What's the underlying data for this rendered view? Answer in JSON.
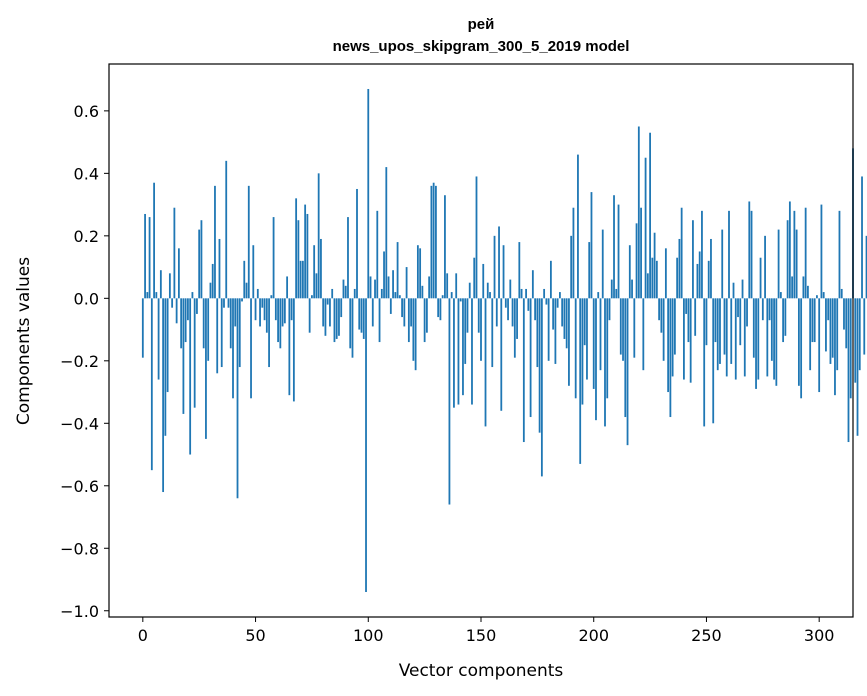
{
  "chart_data": {
    "type": "bar",
    "title": "рей",
    "subtitle": "news_upos_skipgram_300_5_2019 model",
    "xlabel": "Vector components",
    "ylabel": "Components values",
    "xlim": [
      -15,
      315
    ],
    "ylim": [
      -1.02,
      0.75
    ],
    "xticks": [
      0,
      50,
      100,
      150,
      200,
      250,
      300
    ],
    "yticks": [
      -1.0,
      -0.8,
      -0.6,
      -0.4,
      -0.2,
      0.0,
      0.2,
      0.4,
      0.6
    ],
    "ytick_labels": [
      "−1.0",
      "−0.8",
      "−0.6",
      "−0.4",
      "−0.2",
      "0.0",
      "0.2",
      "0.4",
      "0.6"
    ],
    "grid": false,
    "color": "#1f77b4",
    "values": [
      -0.19,
      0.27,
      0.02,
      0.26,
      -0.55,
      0.37,
      0.02,
      -0.26,
      0.09,
      -0.62,
      -0.44,
      -0.3,
      0.08,
      -0.03,
      0.29,
      -0.08,
      0.16,
      -0.16,
      -0.37,
      -0.14,
      -0.07,
      -0.5,
      0.02,
      -0.35,
      -0.05,
      0.22,
      0.25,
      -0.16,
      -0.45,
      -0.2,
      0.05,
      0.11,
      0.36,
      -0.24,
      0.19,
      -0.22,
      -0.03,
      0.44,
      -0.03,
      -0.16,
      -0.32,
      -0.09,
      -0.64,
      -0.22,
      -0.01,
      0.12,
      0.05,
      0.36,
      -0.32,
      0.17,
      -0.07,
      0.03,
      -0.09,
      -0.03,
      -0.07,
      -0.11,
      -0.22,
      0.01,
      0.26,
      -0.07,
      -0.14,
      -0.16,
      -0.09,
      -0.08,
      0.07,
      -0.31,
      -0.07,
      -0.33,
      0.32,
      0.25,
      0.12,
      0.12,
      0.3,
      0.27,
      -0.11,
      0.01,
      0.17,
      0.08,
      0.4,
      0.19,
      -0.09,
      -0.12,
      -0.02,
      -0.09,
      0.03,
      -0.14,
      -0.13,
      -0.12,
      -0.06,
      0.06,
      0.04,
      0.26,
      -0.16,
      -0.19,
      0.03,
      0.35,
      -0.1,
      -0.11,
      -0.13,
      -0.94,
      0.67,
      0.07,
      -0.09,
      0.06,
      0.28,
      -0.14,
      0.03,
      0.15,
      0.42,
      0.07,
      -0.05,
      0.09,
      0.02,
      0.18,
      0.01,
      -0.06,
      -0.09,
      0.1,
      -0.14,
      -0.09,
      -0.2,
      -0.23,
      0.17,
      0.16,
      0.04,
      -0.14,
      -0.11,
      0.07,
      0.36,
      0.37,
      0.36,
      -0.06,
      -0.07,
      0.01,
      0.33,
      0.08,
      -0.66,
      0.02,
      -0.35,
      0.08,
      -0.34,
      -0.01,
      -0.31,
      -0.21,
      -0.11,
      0.05,
      -0.34,
      0.13,
      0.39,
      -0.11,
      -0.2,
      0.11,
      -0.41,
      0.05,
      0.02,
      -0.22,
      0.2,
      -0.09,
      0.23,
      -0.36,
      0.17,
      -0.03,
      -0.07,
      0.06,
      -0.09,
      -0.19,
      -0.13,
      0.18,
      0.03,
      -0.46,
      0.03,
      -0.04,
      -0.38,
      0.09,
      -0.07,
      -0.22,
      -0.43,
      -0.57,
      0.03,
      -0.02,
      -0.2,
      0.12,
      -0.1,
      -0.21,
      -0.03,
      0.02,
      -0.09,
      -0.13,
      -0.16,
      -0.28,
      0.2,
      0.29,
      -0.32,
      0.46,
      -0.53,
      -0.34,
      -0.15,
      -0.26,
      0.18,
      0.34,
      -0.29,
      -0.39,
      0.02,
      -0.23,
      0.22,
      -0.41,
      -0.32,
      -0.07,
      0.06,
      0.33,
      0.03,
      0.3,
      -0.18,
      -0.2,
      -0.38,
      -0.47,
      0.17,
      0.06,
      -0.19,
      0.24,
      0.55,
      0.29,
      -0.23,
      0.45,
      0.08,
      0.53,
      0.13,
      0.21,
      0.12,
      -0.07,
      -0.11,
      -0.2,
      0.16,
      -0.3,
      -0.38,
      -0.25,
      -0.18,
      0.13,
      0.19,
      0.29,
      -0.26,
      -0.05,
      -0.14,
      -0.27,
      0.25,
      -0.12,
      0.11,
      0.15,
      0.28,
      -0.41,
      -0.15,
      0.12,
      0.19,
      -0.4,
      -0.14,
      -0.23,
      -0.21,
      0.22,
      -0.18,
      -0.25,
      0.28,
      -0.21,
      0.05,
      -0.26,
      -0.06,
      -0.15,
      0.06,
      -0.25,
      -0.09,
      0.31,
      0.28,
      -0.19,
      -0.29,
      -0.26,
      0.13,
      -0.07,
      0.2,
      -0.25,
      -0.07,
      -0.2,
      -0.26,
      -0.28,
      0.22,
      0.02,
      -0.14,
      -0.12,
      0.25,
      0.31,
      0.07,
      0.28,
      0.22,
      -0.28,
      -0.32,
      0.07,
      0.29,
      0.04,
      -0.23,
      -0.14,
      -0.14,
      0.01,
      -0.3,
      0.3,
      0.02,
      -0.17,
      -0.07,
      -0.21,
      -0.19,
      -0.31,
      -0.23,
      0.28,
      0.03,
      -0.1,
      -0.16,
      -0.46,
      -0.32,
      0.48,
      -0.27,
      -0.44,
      -0.23,
      0.39,
      -0.18,
      0.2
    ]
  }
}
